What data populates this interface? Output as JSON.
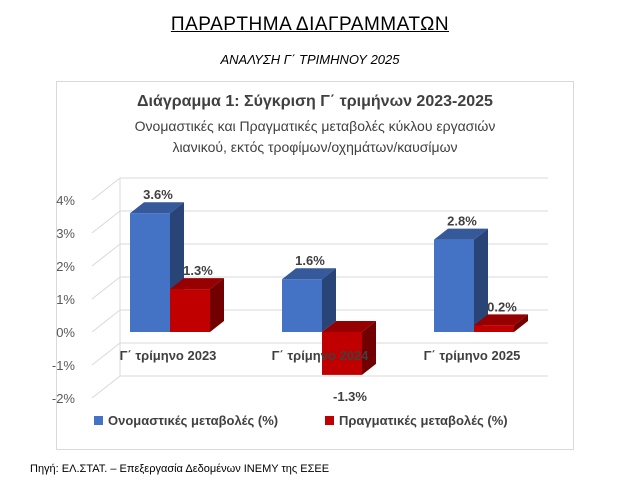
{
  "page": {
    "title": "ΠΑΡΑΡΤΗΜΑ ΔΙΑΓΡΑΜΜΑΤΩΝ",
    "subtitle": "ΑΝΑΛΥΣΗ Γ΄ ΤΡΙΜΗΝΟΥ 2025",
    "source": "Πηγή: ΕΛ.ΣΤΑΤ. – Επεξεργασία Δεδομένων ΙΝΕΜΥ της ΕΣΕΕ"
  },
  "chart_data": {
    "type": "bar",
    "title": "Διάγραμμα 1: Σύγκριση Γ΄ τριμήνων 2023-2025",
    "subtitle": [
      "Ονομαστικές και Πραγματικές μεταβολές κύκλου εργασιών",
      "λιανικού, εκτός τροφίμων/οχημάτων/καυσίμων"
    ],
    "categories": [
      "Γ΄ τρίμηνο 2023",
      "Γ΄ τρίμηνο 2024",
      "Γ΄ τρίμηνο 2025"
    ],
    "series": [
      {
        "name": "Ονομαστικές μεταβολές (%)",
        "values": [
          3.6,
          1.6,
          2.8
        ],
        "labels": [
          "3.6%",
          "1.6%",
          "2.8%"
        ],
        "color": "#4472c4"
      },
      {
        "name": "Πραγματικές μεταβολές (%)",
        "values": [
          1.3,
          -1.3,
          0.2
        ],
        "labels": [
          "1.3%",
          "-1.3%",
          "0.2%"
        ],
        "color": "#c00000"
      }
    ],
    "yticks": [
      "4%",
      "3%",
      "2%",
      "1%",
      "0%",
      "-1%",
      "-2%"
    ],
    "ylim": [
      -2,
      4
    ],
    "grid": true,
    "legend": "bottom",
    "style": "3d-column"
  }
}
